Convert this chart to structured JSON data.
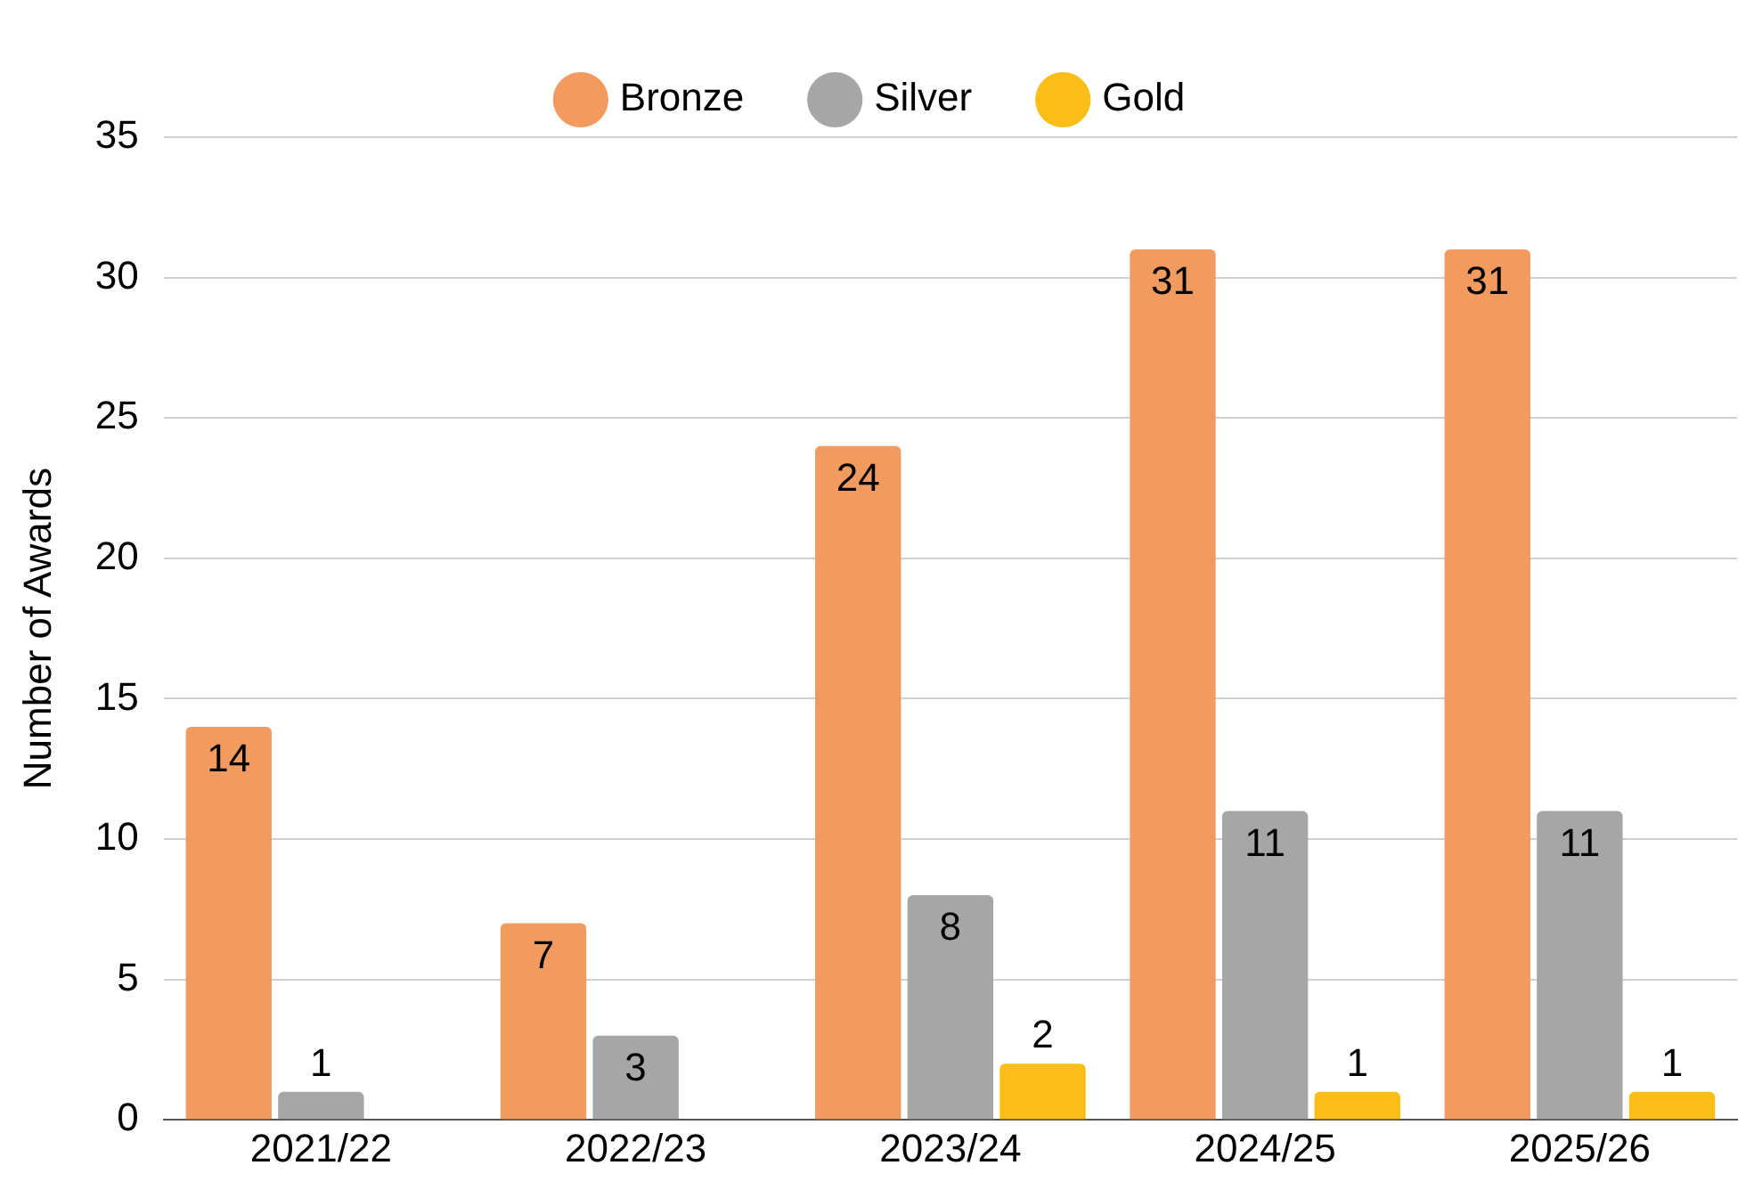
{
  "chart_data": {
    "type": "bar",
    "ylabel": "Number of Awards",
    "categories": [
      "2021/22",
      "2022/23",
      "2023/24",
      "2024/25",
      "2025/26"
    ],
    "series": [
      {
        "name": "Bronze",
        "color": "#f19b61",
        "values": [
          14,
          7,
          24,
          31,
          31
        ]
      },
      {
        "name": "Silver",
        "color": "#a6a6a6",
        "values": [
          1,
          3,
          8,
          11,
          11
        ]
      },
      {
        "name": "Gold",
        "color": "#fbbe17",
        "values": [
          null,
          null,
          2,
          1,
          1
        ]
      }
    ],
    "ylim": [
      0,
      35
    ],
    "yticks": [
      0,
      5,
      10,
      15,
      20,
      25,
      30,
      35
    ],
    "grid": "y",
    "legend": "top",
    "data_labels": true
  }
}
